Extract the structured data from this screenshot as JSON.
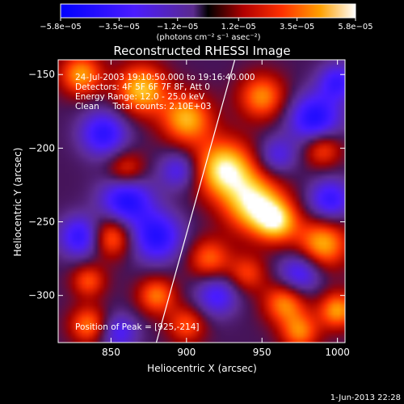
{
  "chart_data": {
    "type": "heatmap",
    "title": "Reconstructed RHESSI Image",
    "xlabel": "Heliocentric X (arcsec)",
    "ylabel": "Heliocentric Y (arcsec)",
    "xlim": [
      815,
      1005
    ],
    "ylim": [
      -332,
      -140
    ],
    "xticks": [
      850,
      900,
      950,
      1000
    ],
    "yticks": [
      -150,
      -200,
      -250,
      -300
    ],
    "colorbar": {
      "range": [
        -5.8e-05,
        5.8e-05
      ],
      "ticks": [
        -5.8e-05,
        -3.5e-05,
        -1.2e-05,
        1.2e-05,
        3.5e-05,
        5.8e-05
      ],
      "tick_labels": [
        "−5.8e−05",
        "−3.5e−05",
        "−1.2e−05",
        "1.2e−05",
        "3.5e−05",
        "5.8e−05"
      ],
      "unit_label": "(photons cm⁻² s⁻¹ asec⁻²)"
    },
    "annotations": [
      "24-Jul-2003 19:10:50.000 to 19:16:40.000",
      "Detectors: 4F 5F 6F 7F 8F, Att 0",
      "Energy Range: 12.0 - 25.0 keV",
      "Clean     Total counts: 2.10E+03"
    ],
    "peak_label": "Position of Peak = [925,-214]",
    "peak": [
      925,
      -214
    ],
    "limb_line": [
      [
        880,
        -332
      ],
      [
        932,
        -140
      ]
    ],
    "blobs": [
      [
        925,
        -214,
        0.95,
        14
      ],
      [
        945,
        -238,
        0.9,
        14
      ],
      [
        900,
        -180,
        0.75,
        12
      ],
      [
        870,
        -160,
        0.8,
        12
      ],
      [
        950,
        -165,
        0.65,
        11
      ],
      [
        990,
        -265,
        0.75,
        12
      ],
      [
        960,
        -250,
        0.7,
        10
      ],
      [
        830,
        -150,
        0.7,
        10
      ],
      [
        850,
        -260,
        0.65,
        10
      ],
      [
        880,
        -300,
        0.6,
        9
      ],
      [
        915,
        -275,
        0.55,
        10
      ],
      [
        965,
        -305,
        0.65,
        10
      ],
      [
        1000,
        -310,
        0.7,
        9
      ],
      [
        990,
        -200,
        0.55,
        9
      ],
      [
        860,
        -215,
        0.5,
        9
      ],
      [
        835,
        -320,
        0.6,
        9
      ],
      [
        975,
        -325,
        0.6,
        9
      ],
      [
        900,
        -320,
        0.5,
        9
      ],
      [
        835,
        -290,
        0.5,
        8
      ],
      [
        940,
        -285,
        0.45,
        9
      ],
      [
        860,
        -235,
        -0.8,
        12
      ],
      [
        845,
        -190,
        -0.7,
        11
      ],
      [
        880,
        -260,
        -0.75,
        12
      ],
      [
        985,
        -180,
        -0.8,
        12
      ],
      [
        995,
        -235,
        -0.65,
        10
      ],
      [
        830,
        -260,
        -0.7,
        10
      ],
      [
        975,
        -285,
        -0.6,
        10
      ],
      [
        920,
        -300,
        -0.55,
        10
      ],
      [
        895,
        -215,
        -0.5,
        9
      ],
      [
        960,
        -205,
        -0.45,
        9
      ],
      [
        1000,
        -155,
        -0.6,
        9
      ],
      [
        855,
        -325,
        -0.5,
        9
      ]
    ]
  },
  "footer": {
    "timestamp": "1-Jun-2013 22:28"
  },
  "colors": {
    "background": "#000000",
    "text": "#ffffff",
    "limb": "#ffffff"
  }
}
